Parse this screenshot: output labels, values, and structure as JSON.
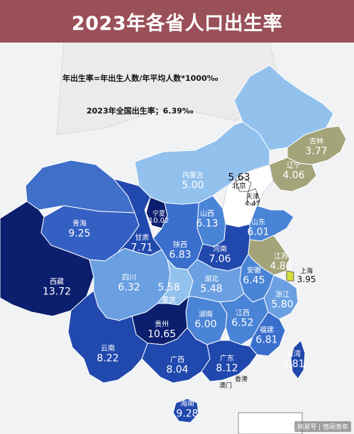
{
  "title": "2023年各省人口出生率",
  "notes": {
    "formula": "年出生率=年出生人数/年平均人数*1000‰",
    "national": "2023年全国出生率；6.39‰"
  },
  "colors": {
    "title_bg": "#9a5058",
    "very_dark": "#0c1f6e",
    "dark": "#2048ad",
    "mid": "#4a84d6",
    "light": "#92c1ee",
    "olive": "#a3a47a",
    "white": "#ffffff"
  },
  "provinces": [
    {
      "key": "heilongjiang",
      "name": "",
      "value": ""
    },
    {
      "key": "jilin",
      "name": "吉林",
      "value": "3.77"
    },
    {
      "key": "liaoning",
      "name": "辽宁",
      "value": "4.06"
    },
    {
      "key": "neimenggu",
      "name": "内蒙古",
      "value": "5.00"
    },
    {
      "key": "beijing",
      "name": "北京",
      "value": "5.63"
    },
    {
      "key": "tianjin",
      "name": "天津",
      "value": "4.47"
    },
    {
      "key": "hebei",
      "name": "",
      "value": ""
    },
    {
      "key": "shanxi",
      "name": "山西",
      "value": "6.13"
    },
    {
      "key": "shandong",
      "name": "山东",
      "value": "6.01"
    },
    {
      "key": "ningxia",
      "name": "宁夏",
      "value": "10.02"
    },
    {
      "key": "qinghai",
      "name": "青海",
      "value": "9.25"
    },
    {
      "key": "gansu",
      "name": "甘肃",
      "value": "7.71"
    },
    {
      "key": "shaanxi",
      "name": "陕西",
      "value": "6.83"
    },
    {
      "key": "henan",
      "name": "河南",
      "value": "7.06"
    },
    {
      "key": "jiangsu",
      "name": "江苏",
      "value": "4.80"
    },
    {
      "key": "shanghai",
      "name": "上海",
      "value": "3.95"
    },
    {
      "key": "xizang",
      "name": "西藏",
      "value": "13.72"
    },
    {
      "key": "sichuan",
      "name": "四川",
      "value": "6.32"
    },
    {
      "key": "chongqing",
      "name": "重庆",
      "value": "5.58"
    },
    {
      "key": "hubei",
      "name": "湖北",
      "value": "5.48"
    },
    {
      "key": "anhui",
      "name": "安徽",
      "value": "6.45"
    },
    {
      "key": "zhejiang",
      "name": "浙江",
      "value": "5.80"
    },
    {
      "key": "hunan",
      "name": "湖南",
      "value": "6.00"
    },
    {
      "key": "jiangxi",
      "name": "江西",
      "value": "6.52"
    },
    {
      "key": "fujian",
      "name": "福建",
      "value": "6.81"
    },
    {
      "key": "guizhou",
      "name": "贵州",
      "value": "10.65"
    },
    {
      "key": "yunnan",
      "name": "云南",
      "value": "8.22"
    },
    {
      "key": "guangxi",
      "name": "广西",
      "value": "8.04"
    },
    {
      "key": "guangdong",
      "name": "广东",
      "value": "8.12"
    },
    {
      "key": "taiwan",
      "name": "台湾",
      "value": "5.81"
    },
    {
      "key": "hainan",
      "name": "海南",
      "value": "9.28"
    }
  ],
  "tags": {
    "xianggang": "香港",
    "aomen": "澳门"
  },
  "watermark": "网易号 | 悠闲青年"
}
